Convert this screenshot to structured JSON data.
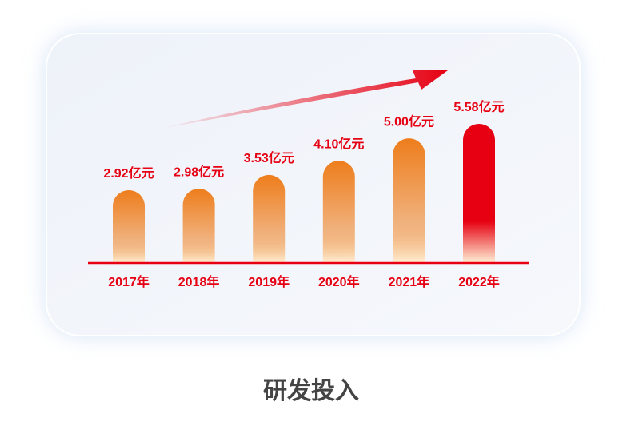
{
  "chart_data": {
    "type": "bar",
    "title": "研发投入",
    "categories": [
      "2017年",
      "2018年",
      "2019年",
      "2020年",
      "2021年",
      "2022年"
    ],
    "values": [
      2.92,
      2.98,
      3.53,
      4.1,
      5.0,
      5.58
    ],
    "value_labels": [
      "2.92亿元",
      "2.98亿元",
      "3.53亿元",
      "4.10亿元",
      "5.00亿元",
      "5.58亿元"
    ],
    "colors": [
      "#ee7d1c",
      "#ee7d1c",
      "#ee7d1c",
      "#ee7d1c",
      "#ee7d1c",
      "#e60012"
    ],
    "label_color": "#e60012"
  }
}
